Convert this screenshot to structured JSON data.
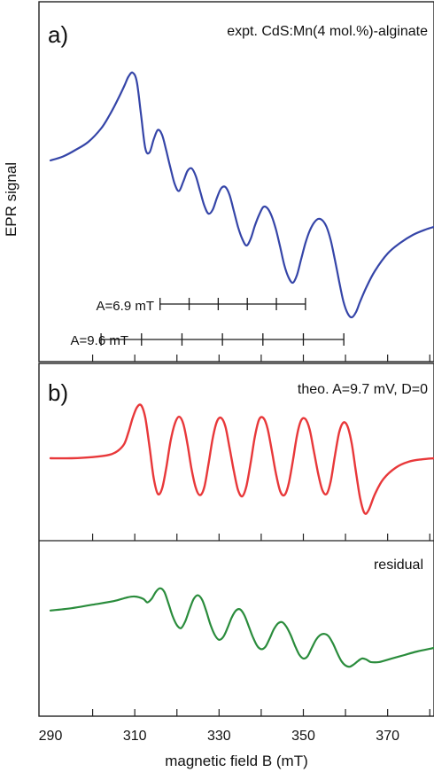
{
  "chart_data": [
    {
      "panel_label": "a)",
      "type": "line",
      "title": "expt. CdS:Mn(4 mol.%)-alginate",
      "ylabel": "EPR signal",
      "xlim": [
        290,
        381
      ],
      "ylim": [
        -1.0,
        1.0
      ],
      "series": [
        {
          "color": "#3545a8",
          "x": [
            290,
            293,
            296,
            299,
            302,
            304,
            306,
            307.5,
            308.5,
            309.5,
            310.5,
            311.5,
            312.5,
            313.5,
            314.5,
            315.5,
            316.5,
            317.5,
            318.5,
            319.5,
            320.5,
            321.5,
            322.5,
            323.5,
            324.5,
            325.5,
            326.5,
            327.5,
            328.5,
            329.5,
            330.5,
            331.5,
            332.5,
            333.5,
            334.5,
            335.5,
            336.5,
            337.5,
            338.5,
            339.5,
            340.5,
            341.5,
            342.5,
            343.5,
            344.5,
            345.5,
            346.5,
            347.5,
            348.5,
            349.5,
            350.5,
            351.5,
            352.5,
            353.5,
            354.5,
            355.5,
            356.5,
            357.5,
            358.5,
            359.5,
            360.5,
            361.5,
            362.5,
            363.5,
            365,
            367,
            370,
            373,
            376,
            379,
            381
          ],
          "y": [
            0.26,
            0.29,
            0.34,
            0.4,
            0.5,
            0.6,
            0.72,
            0.82,
            0.89,
            0.92,
            0.85,
            0.6,
            0.35,
            0.32,
            0.42,
            0.49,
            0.45,
            0.33,
            0.2,
            0.08,
            0.03,
            0.1,
            0.18,
            0.2,
            0.14,
            0.03,
            -0.08,
            -0.14,
            -0.11,
            -0.02,
            0.05,
            0.06,
            0.0,
            -0.12,
            -0.24,
            -0.33,
            -0.38,
            -0.33,
            -0.23,
            -0.15,
            -0.09,
            -0.1,
            -0.16,
            -0.26,
            -0.39,
            -0.53,
            -0.62,
            -0.66,
            -0.6,
            -0.48,
            -0.36,
            -0.27,
            -0.21,
            -0.18,
            -0.19,
            -0.24,
            -0.34,
            -0.49,
            -0.65,
            -0.8,
            -0.89,
            -0.92,
            -0.88,
            -0.8,
            -0.69,
            -0.57,
            -0.44,
            -0.36,
            -0.3,
            -0.26,
            -0.24
          ]
        }
      ],
      "annotations": [
        {
          "label": "A=6.9 mT",
          "ticks": [
            316,
            322.9,
            329.8,
            336.7,
            343.6,
            350.5
          ]
        },
        {
          "label": "A=9.6 mT",
          "ticks": [
            302,
            311.6,
            321.2,
            330.8,
            340.4,
            350.0,
            359.6
          ]
        }
      ]
    },
    {
      "panel_label": "b)",
      "type": "line",
      "title": "theo. A=9.7 mV, D=0",
      "xlim": [
        290,
        381
      ],
      "ylim": [
        -1.0,
        1.0
      ],
      "series": [
        {
          "color": "#e8383a",
          "x": [
            290,
            295,
            300,
            304,
            306,
            307.5,
            308.5,
            309.5,
            310.5,
            311.5,
            312.5,
            313.5,
            314.5,
            315.5,
            316.5,
            317.5,
            318.5,
            319.5,
            320.5,
            321.5,
            322.5,
            323.5,
            324.5,
            325.5,
            326.5,
            327.5,
            328.5,
            329.5,
            330.5,
            331.5,
            332.5,
            333.5,
            334.5,
            335.5,
            336.5,
            337.5,
            338.5,
            339.5,
            340.5,
            341.5,
            342.5,
            343.5,
            344.5,
            345.5,
            346.5,
            347.5,
            348.5,
            349.5,
            350.5,
            351.5,
            352.5,
            353.5,
            354.5,
            355.5,
            356.5,
            357.5,
            358.5,
            359.5,
            360.5,
            361.5,
            362.5,
            363.5,
            364.5,
            365.5,
            367,
            369,
            372,
            375,
            378,
            381
          ],
          "y": [
            0.0,
            0.0,
            0.02,
            0.06,
            0.13,
            0.25,
            0.45,
            0.7,
            0.88,
            0.92,
            0.7,
            0.2,
            -0.35,
            -0.62,
            -0.52,
            -0.15,
            0.3,
            0.6,
            0.72,
            0.6,
            0.25,
            -0.2,
            -0.52,
            -0.64,
            -0.5,
            -0.1,
            0.35,
            0.64,
            0.7,
            0.55,
            0.18,
            -0.22,
            -0.55,
            -0.66,
            -0.48,
            -0.08,
            0.38,
            0.67,
            0.7,
            0.52,
            0.14,
            -0.27,
            -0.57,
            -0.64,
            -0.45,
            -0.05,
            0.4,
            0.66,
            0.68,
            0.5,
            0.12,
            -0.26,
            -0.55,
            -0.62,
            -0.4,
            0.05,
            0.45,
            0.62,
            0.55,
            0.25,
            -0.25,
            -0.7,
            -0.95,
            -0.9,
            -0.62,
            -0.36,
            -0.16,
            -0.06,
            -0.02,
            0.0
          ]
        }
      ]
    },
    {
      "type": "line",
      "title": "residual",
      "xlabel": "magnetic field B (mT)",
      "xlim": [
        290,
        381
      ],
      "xticks": [
        290,
        310,
        330,
        350,
        370
      ],
      "ylim": [
        -1.0,
        1.0
      ],
      "series": [
        {
          "color": "#2a8c3c",
          "x": [
            290,
            295,
            300,
            305,
            308,
            310,
            312,
            313,
            314,
            315,
            316,
            317,
            318,
            319,
            320,
            321,
            322,
            323,
            324,
            325,
            326,
            327,
            328,
            329,
            330,
            331,
            332,
            333,
            334,
            335,
            336,
            337,
            338,
            339,
            340,
            341,
            342,
            343,
            344,
            345,
            346,
            347,
            348,
            349,
            350,
            351,
            352,
            353,
            354,
            355,
            356,
            357,
            358,
            359,
            360,
            361,
            362,
            363,
            364,
            365,
            366,
            368,
            371,
            374,
            377,
            381
          ],
          "y": [
            0.2,
            0.24,
            0.3,
            0.36,
            0.42,
            0.44,
            0.4,
            0.34,
            0.4,
            0.52,
            0.58,
            0.52,
            0.32,
            0.1,
            -0.05,
            -0.1,
            0.02,
            0.22,
            0.4,
            0.46,
            0.38,
            0.18,
            -0.05,
            -0.22,
            -0.3,
            -0.25,
            -0.1,
            0.08,
            0.2,
            0.22,
            0.12,
            -0.06,
            -0.25,
            -0.4,
            -0.46,
            -0.42,
            -0.28,
            -0.12,
            -0.02,
            0.0,
            -0.08,
            -0.22,
            -0.4,
            -0.55,
            -0.62,
            -0.58,
            -0.44,
            -0.3,
            -0.22,
            -0.2,
            -0.24,
            -0.36,
            -0.52,
            -0.66,
            -0.74,
            -0.76,
            -0.72,
            -0.66,
            -0.62,
            -0.64,
            -0.68,
            -0.68,
            -0.62,
            -0.56,
            -0.5,
            -0.44
          ]
        }
      ]
    }
  ]
}
